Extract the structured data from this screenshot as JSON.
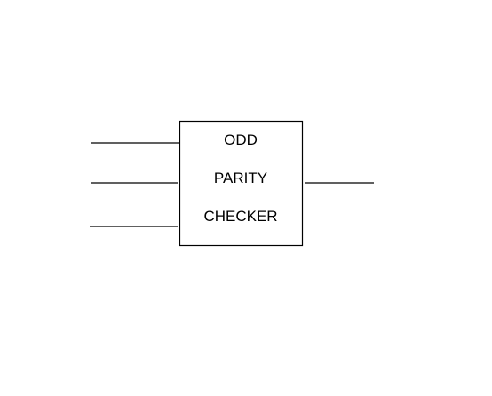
{
  "diagram": {
    "block": {
      "lines": [
        "ODD",
        "PARITY",
        "CHECKER"
      ]
    },
    "inputs": 3,
    "outputs": 1
  }
}
